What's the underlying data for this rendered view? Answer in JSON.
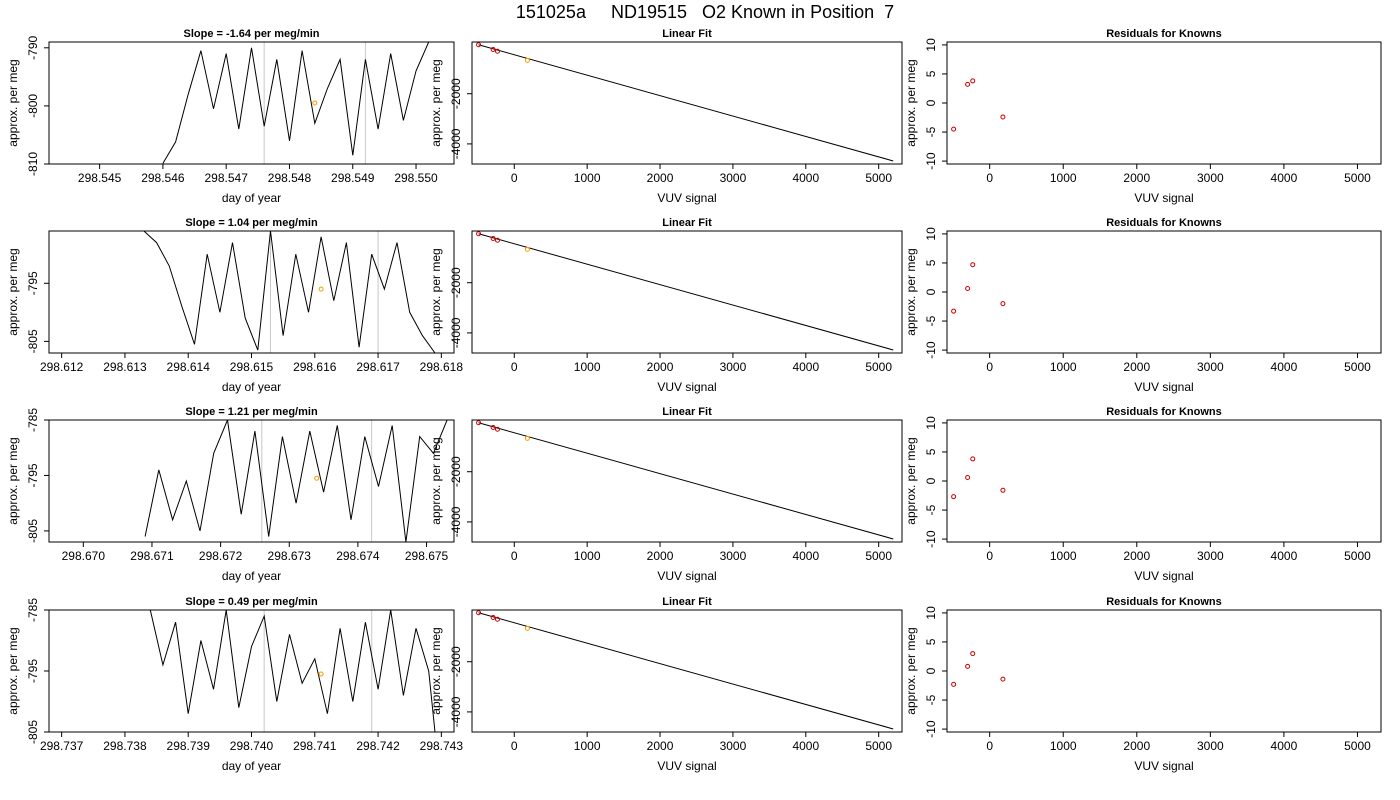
{
  "page": {
    "title": "151025a     ND19515   O2 Known in Position  7"
  },
  "colors": {
    "line": "#000000",
    "frame": "#000000",
    "vline": "#c8c8c8",
    "known_point": "#cc0000",
    "fit_point": "#ff9900",
    "background": "#ffffff"
  },
  "chart_data": [
    {
      "type": "line",
      "title": "Slope =  -1.64  per meg/min",
      "xlabel": "day of year",
      "ylabel": "approx. per meg",
      "xlim": [
        298.5442,
        298.5506
      ],
      "ylim": [
        -810.0,
        -789.0
      ],
      "xticks": [
        "298.545",
        "298.546",
        "298.547",
        "298.548",
        "298.549",
        "298.550"
      ],
      "xtick_values": [
        298.545,
        298.546,
        298.547,
        298.548,
        298.549,
        298.55
      ],
      "yticks": [
        "-810",
        "-800",
        "-790"
      ],
      "ytick_values": [
        -810,
        -800,
        -790
      ],
      "vlines": [
        298.5476,
        298.5492
      ],
      "marker": {
        "x": 298.5484,
        "y": -799.5
      },
      "series": [
        {
          "values": [
            [
              298.546,
              -809.9
            ],
            [
              298.5462,
              -806.2
            ],
            [
              298.5464,
              -798.0
            ],
            [
              298.5466,
              -790.5
            ],
            [
              298.5468,
              -800.5
            ],
            [
              298.547,
              -791.0
            ],
            [
              298.5472,
              -804.0
            ],
            [
              298.5474,
              -790.0
            ],
            [
              298.5476,
              -803.5
            ],
            [
              298.5478,
              -792.0
            ],
            [
              298.548,
              -806.0
            ],
            [
              298.5482,
              -790.5
            ],
            [
              298.5484,
              -803.0
            ],
            [
              298.5486,
              -797.0
            ],
            [
              298.5488,
              -792.0
            ],
            [
              298.549,
              -808.5
            ],
            [
              298.5492,
              -792.0
            ],
            [
              298.5494,
              -804.0
            ],
            [
              298.5496,
              -791.0
            ],
            [
              298.5498,
              -802.5
            ],
            [
              298.55,
              -794.0
            ],
            [
              298.5502,
              -789.0
            ]
          ]
        }
      ]
    },
    {
      "type": "scatter",
      "title": "Linear Fit",
      "xlabel": "VUV signal",
      "ylabel": "approx. per meg",
      "xlim": [
        -580,
        5320
      ],
      "ylim": [
        -4800,
        60
      ],
      "xticks": [
        "0",
        "1000",
        "2000",
        "3000",
        "4000",
        "5000"
      ],
      "xtick_values": [
        0,
        1000,
        2000,
        3000,
        4000,
        5000
      ],
      "yticks": [
        "-4000",
        "-2000"
      ],
      "ytick_values": [
        -4000,
        -2000
      ],
      "line": [
        [
          -490,
          -50
        ],
        [
          5200,
          -4680
        ]
      ],
      "known_points": [
        [
          -490,
          -50
        ],
        [
          -290,
          -240
        ],
        [
          -230,
          -310
        ]
      ],
      "fit_points": [
        [
          180,
          -670
        ]
      ]
    },
    {
      "type": "scatter",
      "title": "Residuals for Knowns",
      "xlabel": "VUV signal",
      "ylabel": "approx. per meg",
      "xlim": [
        -580,
        5320
      ],
      "ylim": [
        -10.5,
        10.5
      ],
      "xticks": [
        "0",
        "1000",
        "2000",
        "3000",
        "4000",
        "5000"
      ],
      "xtick_values": [
        0,
        1000,
        2000,
        3000,
        4000,
        5000
      ],
      "yticks": [
        "-10",
        "-5",
        "0",
        "5",
        "10"
      ],
      "ytick_values": [
        -10,
        -5,
        0,
        5,
        10
      ],
      "known_points": [
        [
          -490,
          -4.5
        ],
        [
          -300,
          3.2
        ],
        [
          -230,
          3.8
        ],
        [
          180,
          -2.4
        ]
      ]
    },
    {
      "type": "line",
      "title": "Slope =  1.04  per meg/min",
      "xlabel": "day of year",
      "ylabel": "approx. per meg",
      "xlim": [
        298.6118,
        298.6182
      ],
      "ylim": [
        -807.0,
        -786.0
      ],
      "xticks": [
        "298.612",
        "298.613",
        "298.614",
        "298.615",
        "298.616",
        "298.617",
        "298.618"
      ],
      "xtick_values": [
        298.612,
        298.613,
        298.614,
        298.615,
        298.616,
        298.617,
        298.618
      ],
      "yticks": [
        "-805",
        "-795"
      ],
      "ytick_values": [
        -805,
        -795
      ],
      "vlines": [
        298.6153,
        298.617
      ],
      "marker": {
        "x": 298.6161,
        "y": -796.0
      },
      "series": [
        {
          "values": [
            [
              298.6133,
              -786.0
            ],
            [
              298.6135,
              -788.0
            ],
            [
              298.6137,
              -792.0
            ],
            [
              298.6139,
              -799.0
            ],
            [
              298.6141,
              -805.5
            ],
            [
              298.6143,
              -790.0
            ],
            [
              298.6145,
              -800.0
            ],
            [
              298.6147,
              -788.0
            ],
            [
              298.6149,
              -801.0
            ],
            [
              298.6151,
              -806.5
            ],
            [
              298.6153,
              -786.0
            ],
            [
              298.6155,
              -804.0
            ],
            [
              298.6157,
              -790.0
            ],
            [
              298.6159,
              -800.0
            ],
            [
              298.6161,
              -787.0
            ],
            [
              298.6163,
              -798.0
            ],
            [
              298.6165,
              -788.0
            ],
            [
              298.6167,
              -806.0
            ],
            [
              298.6169,
              -790.0
            ],
            [
              298.6171,
              -796.0
            ],
            [
              298.6173,
              -788.0
            ],
            [
              298.6175,
              -800.0
            ],
            [
              298.6177,
              -804.0
            ],
            [
              298.6179,
              -807.0
            ]
          ]
        }
      ]
    },
    {
      "type": "scatter",
      "title": "Linear Fit",
      "xlabel": "VUV signal",
      "ylabel": "approx. per meg",
      "xlim": [
        -580,
        5320
      ],
      "ylim": [
        -4800,
        60
      ],
      "xticks": [
        "0",
        "1000",
        "2000",
        "3000",
        "4000",
        "5000"
      ],
      "xtick_values": [
        0,
        1000,
        2000,
        3000,
        4000,
        5000
      ],
      "yticks": [
        "-4000",
        "-2000"
      ],
      "ytick_values": [
        -4000,
        -2000
      ],
      "line": [
        [
          -490,
          -50
        ],
        [
          5200,
          -4680
        ]
      ],
      "known_points": [
        [
          -490,
          -50
        ],
        [
          -290,
          -240
        ],
        [
          -230,
          -310
        ]
      ],
      "fit_points": [
        [
          180,
          -670
        ]
      ]
    },
    {
      "type": "scatter",
      "title": "Residuals for Knowns",
      "xlabel": "VUV signal",
      "ylabel": "approx. per meg",
      "xlim": [
        -580,
        5320
      ],
      "ylim": [
        -10.5,
        10.5
      ],
      "xticks": [
        "0",
        "1000",
        "2000",
        "3000",
        "4000",
        "5000"
      ],
      "xtick_values": [
        0,
        1000,
        2000,
        3000,
        4000,
        5000
      ],
      "yticks": [
        "-10",
        "-5",
        "0",
        "5",
        "10"
      ],
      "ytick_values": [
        -10,
        -5,
        0,
        5,
        10
      ],
      "known_points": [
        [
          -490,
          -3.3
        ],
        [
          -300,
          0.6
        ],
        [
          -230,
          4.7
        ],
        [
          180,
          -2.0
        ]
      ]
    },
    {
      "type": "line",
      "title": "Slope =  1.21  per meg/min",
      "xlabel": "day of year",
      "ylabel": "approx. per meg",
      "xlim": [
        298.6695,
        298.6754
      ],
      "ylim": [
        -807.0,
        -785.0
      ],
      "xticks": [
        "298.670",
        "298.671",
        "298.672",
        "298.673",
        "298.674",
        "298.675"
      ],
      "xtick_values": [
        298.67,
        298.671,
        298.672,
        298.673,
        298.674,
        298.675
      ],
      "yticks": [
        "-805",
        "-795",
        "-785"
      ],
      "ytick_values": [
        -805,
        -795,
        -785
      ],
      "vlines": [
        298.6726,
        298.6742
      ],
      "marker": {
        "x": 298.6734,
        "y": -795.5
      },
      "series": [
        {
          "values": [
            [
              298.6709,
              -806.0
            ],
            [
              298.6711,
              -794.0
            ],
            [
              298.6713,
              -803.0
            ],
            [
              298.6715,
              -796.0
            ],
            [
              298.6717,
              -805.0
            ],
            [
              298.6719,
              -791.0
            ],
            [
              298.6721,
              -785.0
            ],
            [
              298.6723,
              -802.0
            ],
            [
              298.6725,
              -787.0
            ],
            [
              298.6727,
              -806.0
            ],
            [
              298.6729,
              -788.0
            ],
            [
              298.6731,
              -800.0
            ],
            [
              298.6733,
              -787.0
            ],
            [
              298.6735,
              -798.0
            ],
            [
              298.6737,
              -786.0
            ],
            [
              298.6739,
              -803.0
            ],
            [
              298.6741,
              -788.0
            ],
            [
              298.6743,
              -797.0
            ],
            [
              298.6745,
              -786.0
            ],
            [
              298.6747,
              -807.0
            ],
            [
              298.6749,
              -788.0
            ],
            [
              298.6751,
              -791.0
            ],
            [
              298.6753,
              -785.0
            ]
          ]
        }
      ]
    },
    {
      "type": "scatter",
      "title": "Linear Fit",
      "xlabel": "VUV signal",
      "ylabel": "approx. per meg",
      "xlim": [
        -580,
        5320
      ],
      "ylim": [
        -4800,
        60
      ],
      "xticks": [
        "0",
        "1000",
        "2000",
        "3000",
        "4000",
        "5000"
      ],
      "xtick_values": [
        0,
        1000,
        2000,
        3000,
        4000,
        5000
      ],
      "yticks": [
        "-4000",
        "-2000"
      ],
      "ytick_values": [
        -4000,
        -2000
      ],
      "line": [
        [
          -490,
          -50
        ],
        [
          5200,
          -4680
        ]
      ],
      "known_points": [
        [
          -490,
          -50
        ],
        [
          -290,
          -240
        ],
        [
          -230,
          -310
        ]
      ],
      "fit_points": [
        [
          180,
          -670
        ]
      ]
    },
    {
      "type": "scatter",
      "title": "Residuals for Knowns",
      "xlabel": "VUV signal",
      "ylabel": "approx. per meg",
      "xlim": [
        -580,
        5320
      ],
      "ylim": [
        -10.5,
        10.5
      ],
      "xticks": [
        "0",
        "1000",
        "2000",
        "3000",
        "4000",
        "5000"
      ],
      "xtick_values": [
        0,
        1000,
        2000,
        3000,
        4000,
        5000
      ],
      "yticks": [
        "-10",
        "-5",
        "0",
        "5",
        "10"
      ],
      "ytick_values": [
        -10,
        -5,
        0,
        5,
        10
      ],
      "known_points": [
        [
          -490,
          -2.7
        ],
        [
          -300,
          0.6
        ],
        [
          -230,
          3.8
        ],
        [
          180,
          -1.6
        ]
      ]
    },
    {
      "type": "line",
      "title": "Slope =  0.49  per meg/min",
      "xlabel": "day of year",
      "ylabel": "approx. per meg",
      "xlim": [
        298.7368,
        298.7432
      ],
      "ylim": [
        -805.0,
        -785.0
      ],
      "xticks": [
        "298.737",
        "298.738",
        "298.739",
        "298.740",
        "298.741",
        "298.742",
        "298.743"
      ],
      "xtick_values": [
        298.737,
        298.738,
        298.739,
        298.74,
        298.741,
        298.742,
        298.743
      ],
      "yticks": [
        "-805",
        "-795",
        "-785"
      ],
      "ytick_values": [
        -805,
        -795,
        -785
      ],
      "vlines": [
        298.7402,
        298.7419
      ],
      "marker": {
        "x": 298.7411,
        "y": -795.5
      },
      "series": [
        {
          "values": [
            [
              298.7384,
              -785.0
            ],
            [
              298.7386,
              -794.0
            ],
            [
              298.7388,
              -787.0
            ],
            [
              298.739,
              -802.0
            ],
            [
              298.7392,
              -790.0
            ],
            [
              298.7394,
              -798.0
            ],
            [
              298.7396,
              -785.0
            ],
            [
              298.7398,
              -801.0
            ],
            [
              298.74,
              -791.0
            ],
            [
              298.7402,
              -786.0
            ],
            [
              298.7404,
              -800.0
            ],
            [
              298.7406,
              -789.0
            ],
            [
              298.7408,
              -797.0
            ],
            [
              298.741,
              -793.0
            ],
            [
              298.7412,
              -802.0
            ],
            [
              298.7414,
              -788.0
            ],
            [
              298.7416,
              -800.0
            ],
            [
              298.7418,
              -787.0
            ],
            [
              298.742,
              -798.0
            ],
            [
              298.7422,
              -785.0
            ],
            [
              298.7424,
              -799.0
            ],
            [
              298.7426,
              -788.0
            ],
            [
              298.7428,
              -795.0
            ],
            [
              298.7429,
              -805.0
            ]
          ]
        }
      ]
    },
    {
      "type": "scatter",
      "title": "Linear Fit",
      "xlabel": "VUV signal",
      "ylabel": "approx. per meg",
      "xlim": [
        -580,
        5320
      ],
      "ylim": [
        -4800,
        60
      ],
      "xticks": [
        "0",
        "1000",
        "2000",
        "3000",
        "4000",
        "5000"
      ],
      "xtick_values": [
        0,
        1000,
        2000,
        3000,
        4000,
        5000
      ],
      "yticks": [
        "-4000",
        "-2000"
      ],
      "ytick_values": [
        -4000,
        -2000
      ],
      "line": [
        [
          -490,
          -50
        ],
        [
          5200,
          -4680
        ]
      ],
      "known_points": [
        [
          -490,
          -50
        ],
        [
          -290,
          -240
        ],
        [
          -230,
          -310
        ]
      ],
      "fit_points": [
        [
          180,
          -670
        ]
      ]
    },
    {
      "type": "scatter",
      "title": "Residuals for Knowns",
      "xlabel": "VUV signal",
      "ylabel": "approx. per meg",
      "xlim": [
        -580,
        5320
      ],
      "ylim": [
        -10.5,
        10.5
      ],
      "xticks": [
        "0",
        "1000",
        "2000",
        "3000",
        "4000",
        "5000"
      ],
      "xtick_values": [
        0,
        1000,
        2000,
        3000,
        4000,
        5000
      ],
      "yticks": [
        "-10",
        "-5",
        "0",
        "5",
        "10"
      ],
      "ytick_values": [
        -10,
        -5,
        0,
        5,
        10
      ],
      "known_points": [
        [
          -490,
          -2.3
        ],
        [
          -300,
          0.8
        ],
        [
          -230,
          3.0
        ],
        [
          180,
          -1.4
        ]
      ]
    }
  ]
}
